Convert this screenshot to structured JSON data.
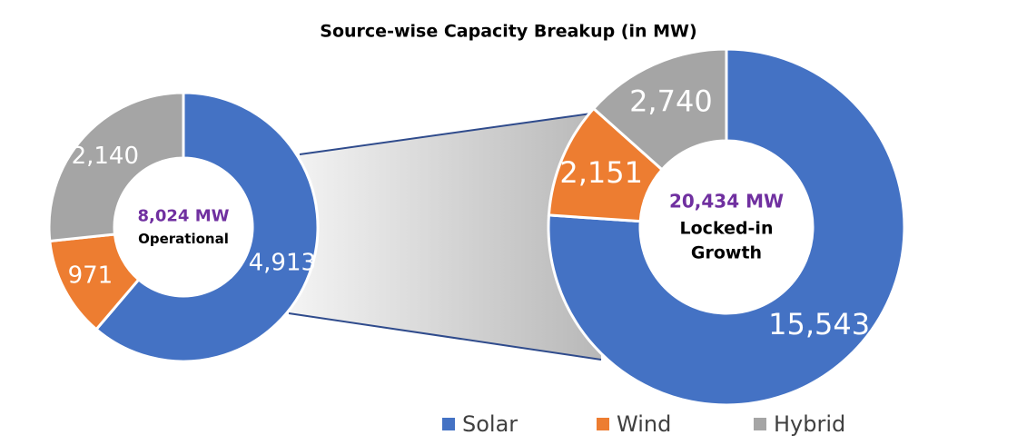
{
  "title": "Source-wise Capacity Breakup (in MW)",
  "chart_data": [
    {
      "type": "donut",
      "categories": [
        "Solar",
        "Wind",
        "Hybrid"
      ],
      "colors": [
        "#4472c4",
        "#ed7d31",
        "#a5a5a5"
      ],
      "values": [
        4913,
        971,
        2140
      ],
      "value_labels": [
        "4,913",
        "971",
        "2,140"
      ],
      "total": 8024,
      "total_label": "8,024 MW",
      "center_text": [
        "Operational"
      ]
    },
    {
      "type": "donut",
      "categories": [
        "Solar",
        "Wind",
        "Hybrid"
      ],
      "colors": [
        "#4472c4",
        "#ed7d31",
        "#a5a5a5"
      ],
      "values": [
        15543,
        2151,
        2740
      ],
      "value_labels": [
        "15,543",
        "2,151",
        "2,740"
      ],
      "total": 20434,
      "total_label": "20,434 MW",
      "center_text": [
        "Locked-in",
        "Growth"
      ]
    }
  ]
}
